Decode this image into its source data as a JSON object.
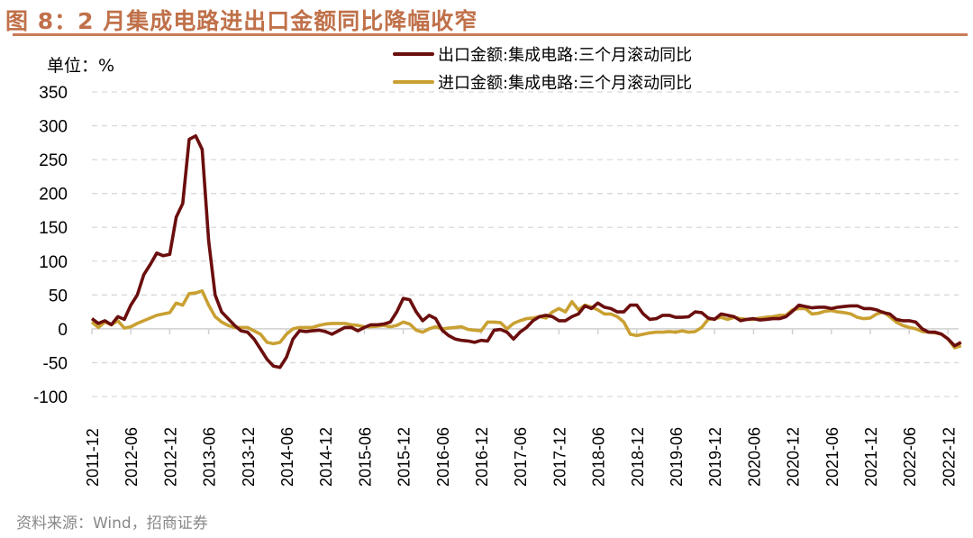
{
  "title": "图 8：2 月集成电路进出口金额同比降幅收窄",
  "unit_label": "单位：%",
  "source": "资料来源：Wind，招商证券",
  "chart_data": {
    "type": "line",
    "title": "图 8：2 月集成电路进出口金额同比降幅收窄",
    "ylabel": "单位：%",
    "xlabel": "",
    "ylim": [
      -100,
      350
    ],
    "yticks": [
      350,
      300,
      250,
      200,
      150,
      100,
      50,
      0,
      -50,
      -100
    ],
    "grid": "horizontal dashed",
    "legend_position": "top-right",
    "x_start": "2011-12",
    "x_end": "2023-02",
    "x_tick_labels": [
      "2011-12",
      "2012-06",
      "2012-12",
      "2013-06",
      "2013-12",
      "2014-06",
      "2014-12",
      "2015-06",
      "2015-12",
      "2016-06",
      "2016-12",
      "2017-06",
      "2017-12",
      "2018-06",
      "2018-12",
      "2019-06",
      "2019-12",
      "2020-06",
      "2020-12",
      "2021-06",
      "2021-12",
      "2022-06",
      "2022-12"
    ],
    "series": [
      {
        "name": "出口金额:集成电路:三个月滚动同比",
        "color": "#6b0e0e",
        "values": [
          15,
          8,
          12,
          6,
          18,
          14,
          35,
          50,
          80,
          95,
          112,
          108,
          110,
          165,
          185,
          280,
          285,
          265,
          130,
          50,
          25,
          15,
          5,
          -3,
          -5,
          -15,
          -30,
          -45,
          -55,
          -57,
          -42,
          -15,
          -3,
          -4,
          -3,
          -2,
          -4,
          -8,
          -3,
          2,
          2,
          -3,
          2,
          6,
          6,
          7,
          10,
          25,
          45,
          43,
          25,
          12,
          20,
          15,
          -2,
          -10,
          -15,
          -17,
          -18,
          -20,
          -17,
          -18,
          -2,
          -1,
          -5,
          -15,
          -5,
          2,
          12,
          18,
          20,
          18,
          12,
          12,
          18,
          22,
          34,
          30,
          38,
          32,
          30,
          25,
          25,
          35,
          35,
          22,
          14,
          15,
          20,
          20,
          17,
          17,
          18,
          25,
          24,
          16,
          14,
          22,
          20,
          18,
          12,
          14,
          15,
          13,
          14,
          15,
          15,
          18,
          26,
          35,
          33,
          31,
          32,
          32,
          30,
          32,
          33,
          34,
          34,
          30,
          30,
          28,
          24,
          22,
          14,
          12,
          12,
          10,
          0,
          -5,
          -5,
          -8,
          -15,
          -25,
          -20
        ]
      },
      {
        "name": "进口金额:集成电路:三个月滚动同比",
        "color": "#c9a032",
        "values": [
          10,
          2,
          10,
          6,
          12,
          1,
          3,
          8,
          12,
          16,
          20,
          22,
          24,
          38,
          35,
          52,
          53,
          56,
          35,
          18,
          10,
          5,
          2,
          2,
          2,
          -3,
          -8,
          -20,
          -22,
          -20,
          -8,
          0,
          2,
          2,
          2,
          5,
          7,
          8,
          8,
          8,
          6,
          5,
          3,
          3,
          4,
          5,
          3,
          5,
          10,
          7,
          -2,
          -5,
          0,
          3,
          0,
          1,
          2,
          3,
          -1,
          -2,
          -3,
          10,
          10,
          9,
          0,
          8,
          12,
          15,
          16,
          18,
          16,
          25,
          30,
          25,
          40,
          28,
          35,
          32,
          28,
          22,
          22,
          18,
          10,
          -8,
          -10,
          -8,
          -6,
          -5,
          -5,
          -4,
          -5,
          -3,
          -5,
          -4,
          2,
          14,
          15,
          17,
          14,
          17,
          15,
          14,
          14,
          16,
          17,
          18,
          20,
          20,
          28,
          30,
          30,
          22,
          23,
          26,
          27,
          25,
          24,
          22,
          17,
          15,
          16,
          22,
          25,
          18,
          10,
          5,
          2,
          0,
          -4,
          -5,
          -6,
          -8,
          -15,
          -28,
          -25
        ]
      }
    ]
  }
}
